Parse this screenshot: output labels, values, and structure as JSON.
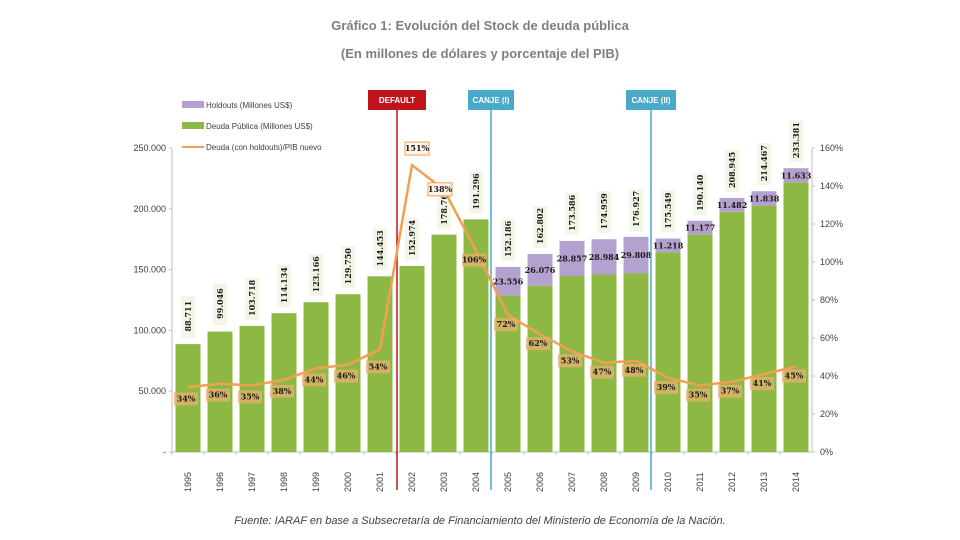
{
  "chart_data": {
    "type": "bar",
    "title": "Gráfico 1: Evolución del Stock de deuda pública",
    "subtitle": "(En millones de dólares y porcentaje del PIB)",
    "source": "Fuente: IARAF en base a Subsecretaría de Financiamiento del Ministerio de Economía de la Nación.",
    "categories": [
      "1995",
      "1996",
      "1997",
      "1998",
      "1999",
      "2000",
      "2001",
      "2002",
      "2003",
      "2004",
      "2005",
      "2006",
      "2007",
      "2008",
      "2009",
      "2010",
      "2011",
      "2012",
      "2013",
      "2014"
    ],
    "total_labels": [
      "88.711",
      "99.046",
      "103.718",
      "114.134",
      "123.166",
      "129.750",
      "144.453",
      "152.974",
      "178.768",
      "191.296",
      "152.186",
      "162.802",
      "173.586",
      "174.959",
      "176.927",
      "175.549",
      "190.140",
      "208.945",
      "214.467",
      "233.381"
    ],
    "series": [
      {
        "name": "Deuda Pública (Millones US$)",
        "color": "#8db844",
        "stack": true,
        "values": [
          88711,
          99046,
          103718,
          114134,
          123166,
          129750,
          144453,
          152974,
          178768,
          191296,
          128630,
          136726,
          144729,
          145975,
          147119,
          164331,
          178963,
          197463,
          202629,
          221748
        ]
      },
      {
        "name": "Holdouts (Millones US$)",
        "color": "#b4a1cf",
        "stack": true,
        "values": [
          null,
          null,
          null,
          null,
          null,
          null,
          null,
          null,
          null,
          null,
          23556,
          26076,
          28857,
          28984,
          29808,
          11218,
          11177,
          11482,
          11838,
          11633
        ],
        "labels": [
          "",
          "",
          "",
          "",
          "",
          "",
          "",
          "",
          "",
          "",
          "23.556",
          "26.076",
          "28.857",
          "28.984",
          "29.808",
          "11.218",
          "11.177",
          "11.482",
          "11.838",
          "11.633"
        ]
      },
      {
        "name": "Deuda (con holdouts)/PIB nuevo",
        "color": "#f0a050",
        "type": "line",
        "axis": "right",
        "values": [
          34,
          36,
          35,
          38,
          44,
          46,
          54,
          151,
          138,
          106,
          72,
          62,
          53,
          47,
          48,
          39,
          35,
          37,
          41,
          45
        ],
        "labels": [
          "34%",
          "36%",
          "35%",
          "38%",
          "44%",
          "46%",
          "54%",
          "151%",
          "138%",
          "106%",
          "72%",
          "62%",
          "53%",
          "47%",
          "48%",
          "39%",
          "35%",
          "37%",
          "41%",
          "45%"
        ]
      }
    ],
    "yaxis_left": {
      "range": [
        0,
        250000
      ],
      "ticks": [
        "-",
        "50.000",
        "100.000",
        "150.000",
        "200.000",
        "250.000"
      ]
    },
    "yaxis_right": {
      "range": [
        0,
        160
      ],
      "ticks": [
        "0%",
        "20%",
        "40%",
        "60%",
        "80%",
        "100%",
        "120%",
        "140%",
        "160%"
      ]
    },
    "legend": {
      "placement": "top-left",
      "entries": [
        "Holdouts (Millones US$)",
        "Deuda Pública (Millones US$)",
        "Deuda (con holdouts)/PIB nuevo"
      ]
    },
    "annotations": [
      {
        "label": "DEFAULT",
        "between": [
          "2001",
          "2002"
        ],
        "color": "#c0141c"
      },
      {
        "label": "CANJE (I)",
        "between": [
          "2004",
          "2005"
        ],
        "color": "#4aa8c8"
      },
      {
        "label": "CANJE (II)",
        "between": [
          "2009",
          "2010"
        ],
        "color": "#4aa8c8"
      }
    ],
    "grid": false
  }
}
